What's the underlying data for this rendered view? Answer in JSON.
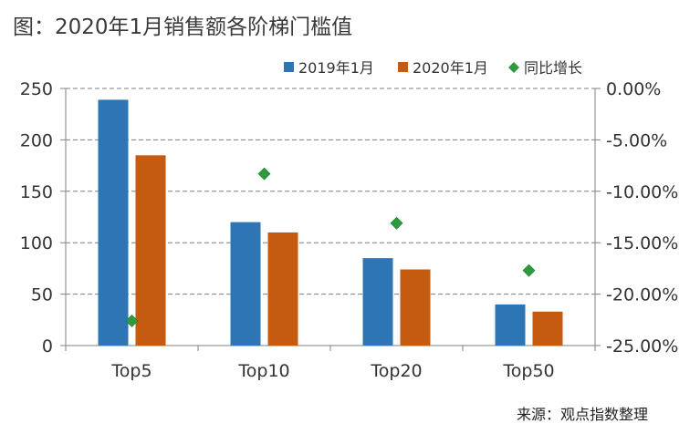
{
  "title": "图：2020年1月销售额各阶梯门槛值",
  "source": "来源：观点指数整理",
  "colors": {
    "series_2019": "#2E75B6",
    "series_2020": "#C55A11",
    "growth": "#2E9A3E",
    "grid": "#7f7f7f",
    "axis": "#808080"
  },
  "chart_data": {
    "type": "bar",
    "categories": [
      "Top5",
      "Top10",
      "Top20",
      "Top50"
    ],
    "series": [
      {
        "name": "2019年1月",
        "axis": "left",
        "values": [
          239,
          120,
          85,
          40
        ]
      },
      {
        "name": "2020年1月",
        "axis": "left",
        "values": [
          185,
          110,
          74,
          33
        ]
      },
      {
        "name": "同比增长",
        "axis": "right",
        "marker": "diamond",
        "values": [
          -22.6,
          -8.3,
          -13.1,
          -17.7
        ]
      }
    ],
    "ylim": [
      0,
      250
    ],
    "yticks": [
      "0",
      "50",
      "100",
      "150",
      "200",
      "250"
    ],
    "y2lim": [
      -25,
      0
    ],
    "y2ticks": [
      "0.00%",
      "-5.00%",
      "-10.00%",
      "-15.00%",
      "-20.00%",
      "-25.00%"
    ],
    "grid": true,
    "legend_position": "top-right"
  }
}
